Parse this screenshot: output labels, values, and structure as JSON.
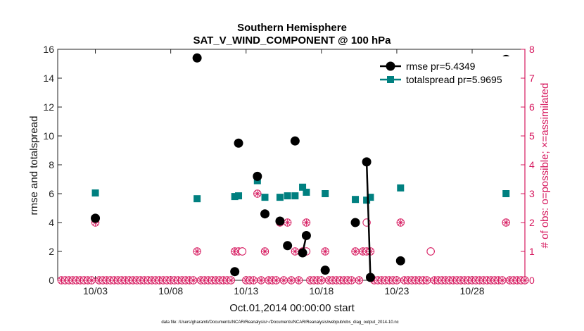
{
  "chart_data": {
    "type": "scatter",
    "title": [
      "Southern Hemisphere",
      "SAT_V_WIND_COMPONENT @ 100 hPa"
    ],
    "xlabel": "Oct.01,2014 00:00:00 start",
    "ylabel": "rmse and totalspread",
    "ylabel_right": "# of obs: o=possible; ×=assimilated",
    "footnote": "data file: /Users/gharamti/Documents/NCAR/Reanalysis/~/Documents/NCAR/Reanalysis/webpub/obs_diag_output_2014-10.nc",
    "xlim": [
      0,
      31
    ],
    "ylim": [
      0,
      16
    ],
    "ylim_right": [
      0,
      8
    ],
    "x_ticks": [
      2.5,
      7.5,
      12.5,
      17.5,
      22.5,
      27.5
    ],
    "x_tick_labels": [
      "10/03",
      "10/08",
      "10/13",
      "10/18",
      "10/23",
      "10/28"
    ],
    "y_ticks": [
      0,
      2,
      4,
      6,
      8,
      10,
      12,
      14,
      16
    ],
    "y_ticks_right": [
      0,
      1,
      2,
      3,
      4,
      5,
      6,
      7,
      8
    ],
    "legend_position": "top-right",
    "grid": false,
    "colors": {
      "rmse": "#000000",
      "totalspread": "#008080",
      "obs": "#d6185e",
      "axis": "#222222"
    },
    "series": [
      {
        "name": "rmse pr=5.4349",
        "marker": "circle",
        "points": [
          [
            2.5,
            4.3
          ],
          [
            9.25,
            15.4
          ],
          [
            11.75,
            0.6
          ],
          [
            12.0,
            9.5
          ],
          [
            13.25,
            7.2
          ],
          [
            13.75,
            4.6
          ],
          [
            14.75,
            4.1
          ],
          [
            15.25,
            2.4
          ],
          [
            15.75,
            9.65
          ],
          [
            16.25,
            1.9
          ],
          [
            16.5,
            3.1
          ],
          [
            17.75,
            0.7
          ],
          [
            19.75,
            4.0
          ],
          [
            20.5,
            8.2
          ],
          [
            20.75,
            0.2
          ],
          [
            22.75,
            1.35
          ],
          [
            29.75,
            15.3
          ]
        ],
        "connected_segments": [
          [
            [
              16.25,
              1.9
            ],
            [
              16.5,
              3.1
            ]
          ],
          [
            [
              20.5,
              8.2
            ],
            [
              20.75,
              0.2
            ]
          ]
        ]
      },
      {
        "name": "totalspread pr=5.9695",
        "marker": "square",
        "points": [
          [
            2.5,
            6.05
          ],
          [
            9.25,
            5.65
          ],
          [
            11.75,
            5.8
          ],
          [
            12.0,
            5.85
          ],
          [
            13.25,
            6.9
          ],
          [
            13.75,
            5.75
          ],
          [
            14.75,
            5.75
          ],
          [
            15.25,
            5.85
          ],
          [
            15.75,
            5.85
          ],
          [
            16.25,
            6.45
          ],
          [
            16.5,
            6.1
          ],
          [
            17.75,
            6.0
          ],
          [
            19.75,
            5.6
          ],
          [
            20.5,
            5.55
          ],
          [
            20.75,
            5.75
          ],
          [
            22.75,
            6.4
          ],
          [
            29.75,
            6.0
          ]
        ],
        "connected_segments": [
          [
            [
              16.25,
              6.45
            ],
            [
              16.5,
              6.1
            ]
          ],
          [
            [
              20.5,
              5.55
            ],
            [
              20.75,
              5.75
            ]
          ]
        ]
      }
    ],
    "obs_counts": {
      "axis": "right",
      "marker": "circle-with-cross",
      "zero_days_start": 0.25,
      "zero_days_step": 0.25,
      "zero_days_end": 31,
      "points": [
        [
          2.5,
          2
        ],
        [
          9.25,
          1
        ],
        [
          11.75,
          1
        ],
        [
          12.0,
          1
        ],
        [
          12.25,
          1
        ],
        [
          13.25,
          3
        ],
        [
          13.75,
          1
        ],
        [
          14.75,
          2
        ],
        [
          15.25,
          2
        ],
        [
          15.75,
          1
        ],
        [
          16.25,
          1
        ],
        [
          16.5,
          2
        ],
        [
          17.75,
          1
        ],
        [
          19.75,
          1
        ],
        [
          20.25,
          1
        ],
        [
          20.5,
          1
        ],
        [
          20.75,
          1
        ],
        [
          22.75,
          2
        ],
        [
          24.75,
          1
        ],
        [
          29.75,
          2
        ]
      ],
      "possible_only": [
        [
          12.25,
          1
        ],
        [
          16.5,
          1
        ],
        [
          20.5,
          2
        ],
        [
          24.75,
          1
        ]
      ]
    }
  }
}
